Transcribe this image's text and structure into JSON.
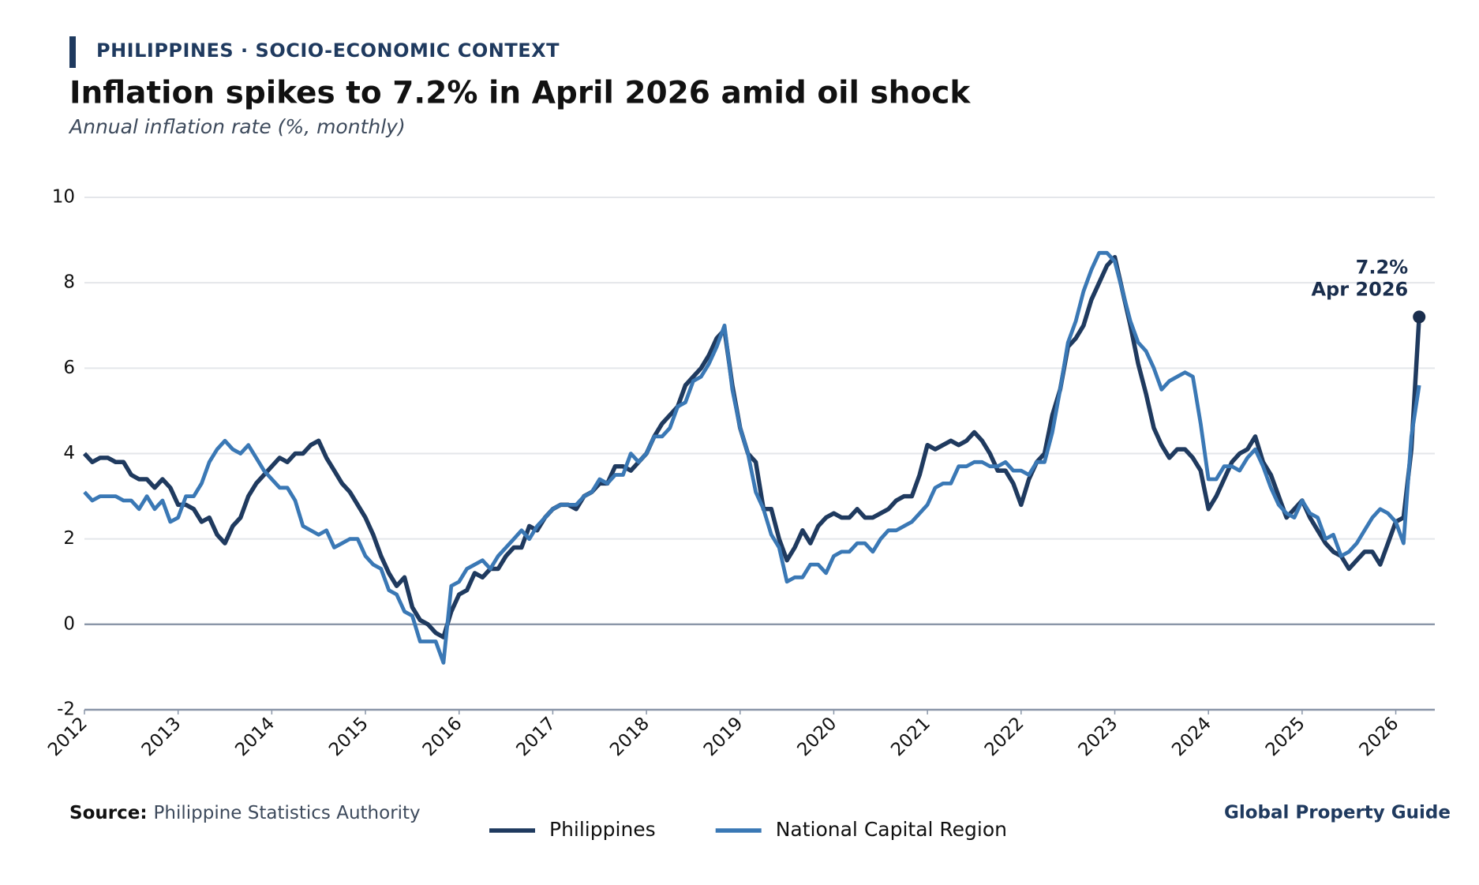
{
  "header": {
    "kicker": "PHILIPPINES · SOCIO-ECONOMIC CONTEXT"
  },
  "chart_data": {
    "type": "line",
    "title": "Inflation spikes to 7.2% in April 2026 amid oil shock",
    "subtitle": "Annual inflation rate (%, monthly)",
    "x": [
      "2012-01",
      "2012-02",
      "2012-03",
      "2012-04",
      "2012-05",
      "2012-06",
      "2012-07",
      "2012-08",
      "2012-09",
      "2012-10",
      "2012-11",
      "2012-12",
      "2013-01",
      "2013-02",
      "2013-03",
      "2013-04",
      "2013-05",
      "2013-06",
      "2013-07",
      "2013-08",
      "2013-09",
      "2013-10",
      "2013-11",
      "2013-12",
      "2014-01",
      "2014-02",
      "2014-03",
      "2014-04",
      "2014-05",
      "2014-06",
      "2014-07",
      "2014-08",
      "2014-09",
      "2014-10",
      "2014-11",
      "2014-12",
      "2015-01",
      "2015-02",
      "2015-03",
      "2015-04",
      "2015-05",
      "2015-06",
      "2015-07",
      "2015-08",
      "2015-09",
      "2015-10",
      "2015-11",
      "2015-12",
      "2016-01",
      "2016-02",
      "2016-03",
      "2016-04",
      "2016-05",
      "2016-06",
      "2016-07",
      "2016-08",
      "2016-09",
      "2016-10",
      "2016-11",
      "2016-12",
      "2017-01",
      "2017-02",
      "2017-03",
      "2017-04",
      "2017-05",
      "2017-06",
      "2017-07",
      "2017-08",
      "2017-09",
      "2017-10",
      "2017-11",
      "2017-12",
      "2018-01",
      "2018-02",
      "2018-03",
      "2018-04",
      "2018-05",
      "2018-06",
      "2018-07",
      "2018-08",
      "2018-09",
      "2018-10",
      "2018-11",
      "2018-12",
      "2019-01",
      "2019-02",
      "2019-03",
      "2019-04",
      "2019-05",
      "2019-06",
      "2019-07",
      "2019-08",
      "2019-09",
      "2019-10",
      "2019-11",
      "2019-12",
      "2020-01",
      "2020-02",
      "2020-03",
      "2020-04",
      "2020-05",
      "2020-06",
      "2020-07",
      "2020-08",
      "2020-09",
      "2020-10",
      "2020-11",
      "2020-12",
      "2021-01",
      "2021-02",
      "2021-03",
      "2021-04",
      "2021-05",
      "2021-06",
      "2021-07",
      "2021-08",
      "2021-09",
      "2021-10",
      "2021-11",
      "2021-12",
      "2022-01",
      "2022-02",
      "2022-03",
      "2022-04",
      "2022-05",
      "2022-06",
      "2022-07",
      "2022-08",
      "2022-09",
      "2022-10",
      "2022-11",
      "2022-12",
      "2023-01",
      "2023-02",
      "2023-03",
      "2023-04",
      "2023-05",
      "2023-06",
      "2023-07",
      "2023-08",
      "2023-09",
      "2023-10",
      "2023-11",
      "2023-12",
      "2024-01",
      "2024-02",
      "2024-03",
      "2024-04",
      "2024-05",
      "2024-06",
      "2024-07",
      "2024-08",
      "2024-09",
      "2024-10",
      "2024-11",
      "2024-12",
      "2025-01",
      "2025-02",
      "2025-03",
      "2025-04",
      "2025-05",
      "2025-06",
      "2025-07",
      "2025-08",
      "2025-09",
      "2025-10",
      "2025-11",
      "2025-12",
      "2026-01",
      "2026-02",
      "2026-03",
      "2026-04"
    ],
    "xlim": [
      "2012-01",
      "2026-06"
    ],
    "xticks": [
      "2012",
      "2013",
      "2014",
      "2015",
      "2016",
      "2017",
      "2018",
      "2019",
      "2020",
      "2021",
      "2022",
      "2023",
      "2024",
      "2025",
      "2026"
    ],
    "ylim": [
      -2,
      10
    ],
    "yticks": [
      -2,
      0,
      2,
      4,
      6,
      8,
      10
    ],
    "grid": true,
    "series": [
      {
        "name": "Philippines",
        "color": "#1f3a5f",
        "values": [
          4.0,
          3.8,
          3.9,
          3.9,
          3.8,
          3.8,
          3.5,
          3.4,
          3.4,
          3.2,
          3.4,
          3.2,
          2.8,
          2.8,
          2.7,
          2.4,
          2.5,
          2.1,
          1.9,
          2.3,
          2.5,
          3.0,
          3.3,
          3.5,
          3.7,
          3.9,
          3.8,
          4.0,
          4.0,
          4.2,
          4.3,
          3.9,
          3.6,
          3.3,
          3.1,
          2.8,
          2.5,
          2.1,
          1.6,
          1.2,
          0.9,
          1.1,
          0.4,
          0.1,
          0.0,
          -0.2,
          -0.3,
          0.3,
          0.7,
          0.8,
          1.2,
          1.1,
          1.3,
          1.3,
          1.6,
          1.8,
          1.8,
          2.3,
          2.2,
          2.5,
          2.7,
          2.8,
          2.8,
          2.7,
          3.0,
          3.1,
          3.3,
          3.3,
          3.7,
          3.7,
          3.6,
          3.8,
          4.0,
          4.4,
          4.7,
          4.9,
          5.1,
          5.6,
          5.8,
          6.0,
          6.3,
          6.7,
          6.9,
          5.6,
          4.6,
          4.0,
          3.8,
          2.7,
          2.7,
          2.0,
          1.5,
          1.8,
          2.2,
          1.9,
          2.3,
          2.5,
          2.6,
          2.5,
          2.5,
          2.7,
          2.5,
          2.5,
          2.6,
          2.7,
          2.9,
          3.0,
          3.0,
          3.5,
          4.2,
          4.1,
          4.2,
          4.3,
          4.2,
          4.3,
          4.5,
          4.3,
          4.0,
          3.6,
          3.6,
          3.3,
          2.8,
          3.4,
          3.8,
          4.0,
          4.9,
          5.5,
          6.5,
          6.7,
          7.0,
          7.6,
          8.0,
          8.4,
          8.6,
          7.8,
          7.0,
          6.1,
          5.4,
          4.6,
          4.2,
          3.9,
          4.1,
          4.1,
          3.9,
          3.6,
          2.7,
          3.0,
          3.4,
          3.8,
          4.0,
          4.1,
          4.4,
          3.8,
          3.5,
          3.0,
          2.5,
          2.7,
          2.9,
          2.5,
          2.2,
          1.9,
          1.7,
          1.6,
          1.3,
          1.5,
          1.7,
          1.7,
          1.4,
          1.9,
          2.4,
          2.5,
          4.1,
          7.2
        ]
      },
      {
        "name": "National Capital Region",
        "color": "#3a78b5",
        "values": [
          3.1,
          2.9,
          3.0,
          3.0,
          3.0,
          2.9,
          2.9,
          2.7,
          3.0,
          2.7,
          2.9,
          2.4,
          2.5,
          3.0,
          3.0,
          3.3,
          3.8,
          4.1,
          4.3,
          4.1,
          4.0,
          4.2,
          3.9,
          3.6,
          3.4,
          3.2,
          3.2,
          2.9,
          2.3,
          2.2,
          2.1,
          2.2,
          1.8,
          1.9,
          2.0,
          2.0,
          1.6,
          1.4,
          1.3,
          0.8,
          0.7,
          0.3,
          0.2,
          -0.4,
          -0.4,
          -0.4,
          -0.9,
          0.9,
          1.0,
          1.3,
          1.4,
          1.5,
          1.3,
          1.6,
          1.8,
          2.0,
          2.2,
          2.0,
          2.3,
          2.5,
          2.7,
          2.8,
          2.8,
          2.8,
          3.0,
          3.1,
          3.4,
          3.3,
          3.5,
          3.5,
          4.0,
          3.8,
          4.0,
          4.4,
          4.4,
          4.6,
          5.1,
          5.2,
          5.7,
          5.8,
          6.1,
          6.5,
          7.0,
          5.5,
          4.6,
          4.0,
          3.1,
          2.7,
          2.1,
          1.8,
          1.0,
          1.1,
          1.1,
          1.4,
          1.4,
          1.2,
          1.6,
          1.7,
          1.7,
          1.9,
          1.9,
          1.7,
          2.0,
          2.2,
          2.2,
          2.3,
          2.4,
          2.6,
          2.8,
          3.2,
          3.3,
          3.3,
          3.7,
          3.7,
          3.8,
          3.8,
          3.7,
          3.7,
          3.8,
          3.6,
          3.6,
          3.5,
          3.8,
          3.8,
          4.5,
          5.5,
          6.6,
          7.1,
          7.8,
          8.3,
          8.7,
          8.7,
          8.5,
          7.8,
          7.1,
          6.6,
          6.4,
          6.0,
          5.5,
          5.7,
          5.8,
          5.9,
          5.8,
          4.7,
          3.4,
          3.4,
          3.7,
          3.7,
          3.6,
          3.9,
          4.1,
          3.7,
          3.2,
          2.8,
          2.6,
          2.5,
          2.9,
          2.6,
          2.5,
          2.0,
          2.1,
          1.6,
          1.7,
          1.9,
          2.2,
          2.5,
          2.7,
          2.6,
          2.4,
          1.9,
          4.4,
          5.6
        ]
      }
    ],
    "annotation": {
      "value_label": "7.2%",
      "date_label": "Apr 2026"
    }
  },
  "footer": {
    "source_label": "Source:",
    "source": "Philippine Statistics Authority",
    "brand": "Global Property Guide"
  }
}
